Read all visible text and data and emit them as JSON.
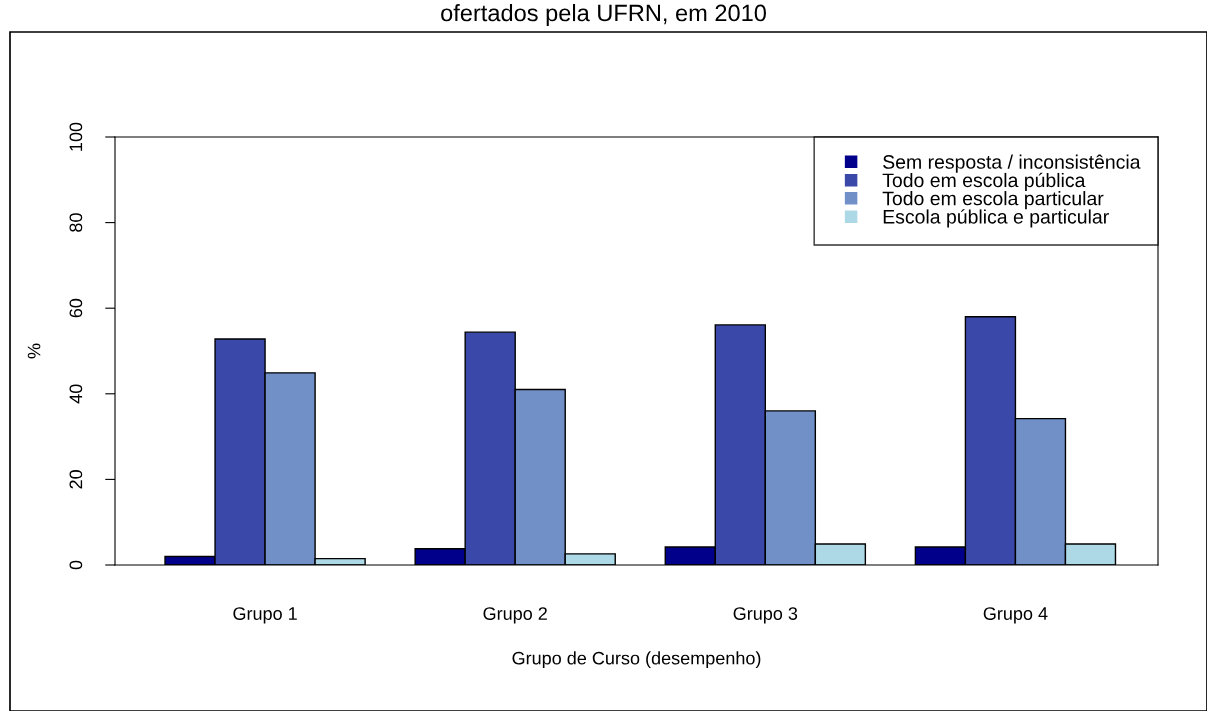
{
  "chart_data": {
    "type": "bar",
    "title": "ofertados pela UFRN, em 2010",
    "xlabel": "Grupo de Curso (desempenho)",
    "ylabel": "%",
    "categories": [
      "Grupo 1",
      "Grupo 2",
      "Grupo 3",
      "Grupo 4"
    ],
    "series": [
      {
        "name": "Sem resposta / inconsistência",
        "color": "#00008b",
        "values": [
          2.0,
          3.8,
          4.2,
          4.2
        ]
      },
      {
        "name": "Todo em escola pública",
        "color": "#3a49a9",
        "values": [
          52.8,
          54.4,
          56.1,
          58.0
        ]
      },
      {
        "name": "Todo em escola particular",
        "color": "#7190c8",
        "values": [
          44.9,
          41.0,
          36.0,
          34.2
        ]
      },
      {
        "name": "Escola pública e particular",
        "color": "#add8e6",
        "values": [
          1.5,
          2.6,
          4.9,
          4.9
        ]
      }
    ],
    "ylim": [
      0,
      100
    ],
    "yticks": [
      0,
      20,
      40,
      60,
      80,
      100
    ],
    "grid": false,
    "legend": "top right"
  }
}
